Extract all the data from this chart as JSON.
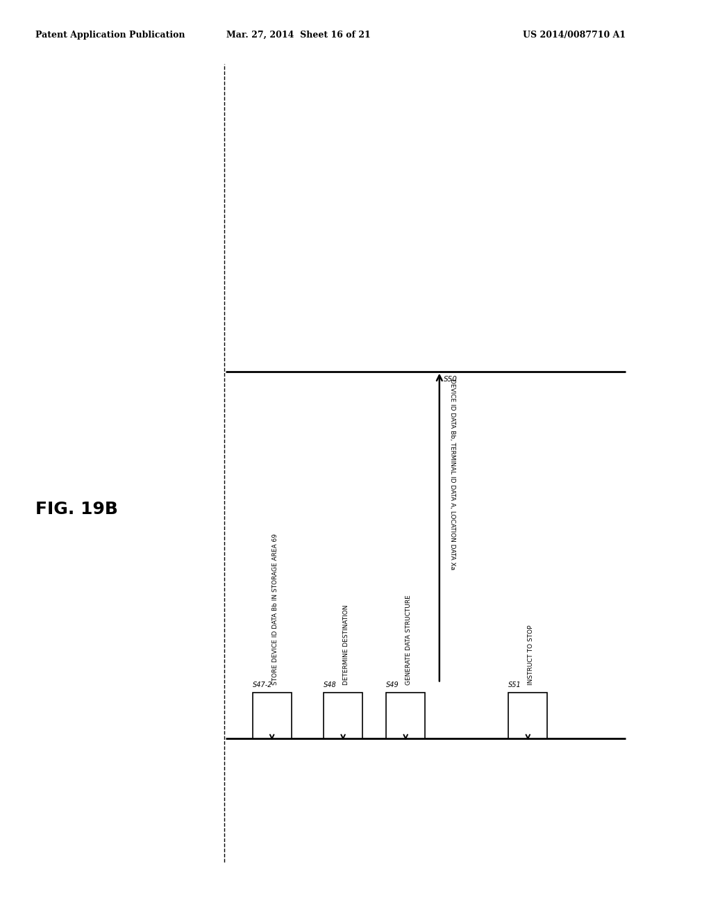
{
  "title": "FIG. 19B",
  "header_left": "Patent Application Publication",
  "header_center": "Mar. 27, 2014  Sheet 16 of 21",
  "header_right": "US 2014/0087710 A1",
  "background_color": "#ffffff",
  "steps": [
    {
      "id": "S47-2",
      "label": "STORE DEVICE ID DATA Bb IN STORAGE AREA 69"
    },
    {
      "id": "S48",
      "label": "DETERMINE DESTINATION"
    },
    {
      "id": "S49",
      "label": "GENERATE DATA STRUCTURE"
    },
    {
      "id": "S51",
      "label": "INSTRUCT TO STOP"
    }
  ],
  "s50_label": "S50",
  "s50_side_label": "DEVICE ID DATA Bb, TERMINAL ID DATA A, LOCATION DATA Xa",
  "font_size_header": 9,
  "font_size_title": 18
}
